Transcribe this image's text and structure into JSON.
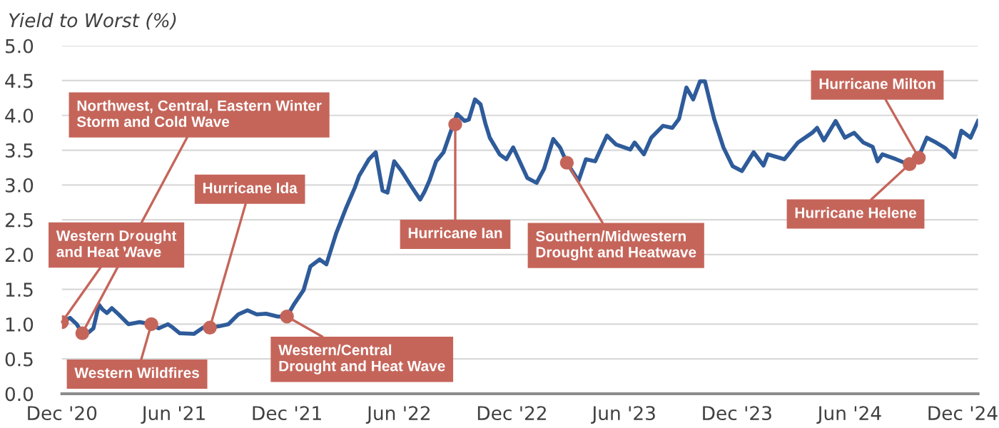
{
  "chart_data": {
    "type": "line",
    "ylabel": "Yield to Worst (%)",
    "x": [
      "2020-12-01",
      "2020-12-14",
      "2020-12-25",
      "2021-01-03",
      "2021-01-13",
      "2021-01-21",
      "2021-01-30",
      "2021-02-05",
      "2021-02-12",
      "2021-02-20",
      "2021-03-03",
      "2021-03-19",
      "2021-04-06",
      "2021-04-25",
      "2021-05-07",
      "2021-05-22",
      "2021-05-30",
      "2021-06-10",
      "2021-07-03",
      "2021-07-18",
      "2021-07-29",
      "2021-08-13",
      "2021-08-28",
      "2021-09-13",
      "2021-09-28",
      "2021-10-13",
      "2021-10-28",
      "2021-11-16",
      "2021-12-01",
      "2021-12-12",
      "2021-12-28",
      "2022-01-08",
      "2022-01-23",
      "2022-02-03",
      "2022-02-19",
      "2022-03-06",
      "2022-03-21",
      "2022-03-28",
      "2022-04-13",
      "2022-04-24",
      "2022-05-05",
      "2022-05-13",
      "2022-05-24",
      "2022-06-05",
      "2022-06-20",
      "2022-07-05",
      "2022-07-12",
      "2022-07-20",
      "2022-07-31",
      "2022-08-12",
      "2022-08-23",
      "2022-09-03",
      "2022-09-15",
      "2022-09-22",
      "2022-10-02",
      "2022-10-11",
      "2022-10-19",
      "2022-10-26",
      "2022-11-11",
      "2022-11-22",
      "2022-12-03",
      "2022-12-26",
      "2023-01-10",
      "2023-01-22",
      "2023-02-06",
      "2023-02-17",
      "2023-02-28",
      "2023-03-19",
      "2023-03-31",
      "2023-04-15",
      "2023-05-04",
      "2023-05-19",
      "2023-06-11",
      "2023-06-18",
      "2023-07-03",
      "2023-07-15",
      "2023-08-03",
      "2023-08-18",
      "2023-08-29",
      "2023-09-10",
      "2023-09-21",
      "2023-10-02",
      "2023-10-10",
      "2023-10-25",
      "2023-11-09",
      "2023-11-24",
      "2023-12-09",
      "2023-12-28",
      "2024-01-13",
      "2024-01-20",
      "2024-02-16",
      "2024-03-09",
      "2024-04-01",
      "2024-04-09",
      "2024-04-20",
      "2024-05-09",
      "2024-05-24",
      "2024-06-08",
      "2024-06-23",
      "2024-07-08",
      "2024-07-16",
      "2024-07-24",
      "2024-08-15",
      "2024-09-03",
      "2024-09-19",
      "2024-10-04",
      "2024-10-19",
      "2024-11-03",
      "2024-11-18",
      "2024-11-29",
      "2024-12-14",
      "2024-12-26"
    ],
    "series": [
      {
        "color": "#2e5b9a",
        "values": [
          1.03,
          1.09,
          1.0,
          0.87,
          0.88,
          0.94,
          1.28,
          1.21,
          1.16,
          1.23,
          1.14,
          1.0,
          1.03,
          1.0,
          0.94,
          1.0,
          0.95,
          0.87,
          0.86,
          0.95,
          0.95,
          0.97,
          1.0,
          1.14,
          1.2,
          1.14,
          1.15,
          1.11,
          1.11,
          1.28,
          1.49,
          1.83,
          1.93,
          1.86,
          2.31,
          2.65,
          2.96,
          3.13,
          3.37,
          3.47,
          2.92,
          2.89,
          3.34,
          3.2,
          2.99,
          2.79,
          2.9,
          3.06,
          3.34,
          3.47,
          3.75,
          4.02,
          3.92,
          3.94,
          4.23,
          4.16,
          3.88,
          3.68,
          3.44,
          3.37,
          3.54,
          3.1,
          3.03,
          3.23,
          3.66,
          3.54,
          3.32,
          3.06,
          3.37,
          3.34,
          3.71,
          3.58,
          3.51,
          3.61,
          3.44,
          3.68,
          3.85,
          3.82,
          3.95,
          4.4,
          4.23,
          4.49,
          4.49,
          3.95,
          3.54,
          3.27,
          3.2,
          3.47,
          3.28,
          3.44,
          3.37,
          3.61,
          3.75,
          3.82,
          3.64,
          3.92,
          3.68,
          3.75,
          3.61,
          3.55,
          3.34,
          3.44,
          3.37,
          3.3,
          3.37,
          3.68,
          3.61,
          3.53,
          3.4,
          3.78,
          3.68,
          3.92
        ]
      }
    ],
    "marker": "none",
    "line_style": "solid",
    "grid": "y",
    "xlim": [
      "2020-12-01",
      "2024-12-26"
    ],
    "xticks": [
      {
        "value": "2020-12-01",
        "label": "Dec '20"
      },
      {
        "value": "2021-06-01",
        "label": "Jun '21"
      },
      {
        "value": "2021-12-01",
        "label": "Dec '21"
      },
      {
        "value": "2022-06-01",
        "label": "Jun '22"
      },
      {
        "value": "2022-12-01",
        "label": "Dec '22"
      },
      {
        "value": "2023-06-01",
        "label": "Jun '23"
      },
      {
        "value": "2023-12-01",
        "label": "Dec '23"
      },
      {
        "value": "2024-06-01",
        "label": "Jun '24"
      },
      {
        "value": "2024-12-01",
        "label": "Dec '24"
      }
    ],
    "ylim": [
      0,
      5
    ],
    "yticks": [
      {
        "value": 0,
        "label": "0.0"
      },
      {
        "value": 0.5,
        "label": "0.5"
      },
      {
        "value": 1,
        "label": "1.0"
      },
      {
        "value": 1.5,
        "label": "1.5"
      },
      {
        "value": 2,
        "label": "2.0"
      },
      {
        "value": 2.5,
        "label": "2.5"
      },
      {
        "value": 3,
        "label": "3.0"
      },
      {
        "value": 3.5,
        "label": "3.5"
      },
      {
        "value": 4,
        "label": "4.0"
      },
      {
        "value": 4.5,
        "label": "4.5"
      },
      {
        "value": 5,
        "label": "5.0"
      }
    ],
    "annotations": [
      {
        "text": "Western Drought\nand Heat Wave",
        "x": "2020-12-01",
        "y": 1.03
      },
      {
        "text": "Northwest, Central, Eastern Winter\nStorm and Cold Wave",
        "x": "2021-01-03",
        "y": 0.87
      },
      {
        "text": "Western Wildfires",
        "x": "2021-04-25",
        "y": 1.0
      },
      {
        "text": "Hurricane Ida",
        "x": "2021-07-29",
        "y": 0.95
      },
      {
        "text": "Western/Central\nDrought and Heat Wave",
        "x": "2021-12-01",
        "y": 1.11
      },
      {
        "text": "Hurricane Ian",
        "x": "2022-08-31",
        "y": 3.87
      },
      {
        "text": "Southern/Midwestern\nDrought and Heatwave",
        "x": "2023-02-28",
        "y": 3.32
      },
      {
        "text": "Hurricane Helene",
        "x": "2024-09-06",
        "y": 3.3
      },
      {
        "text": "Hurricane Milton",
        "x": "2024-09-21",
        "y": 3.39
      }
    ]
  }
}
